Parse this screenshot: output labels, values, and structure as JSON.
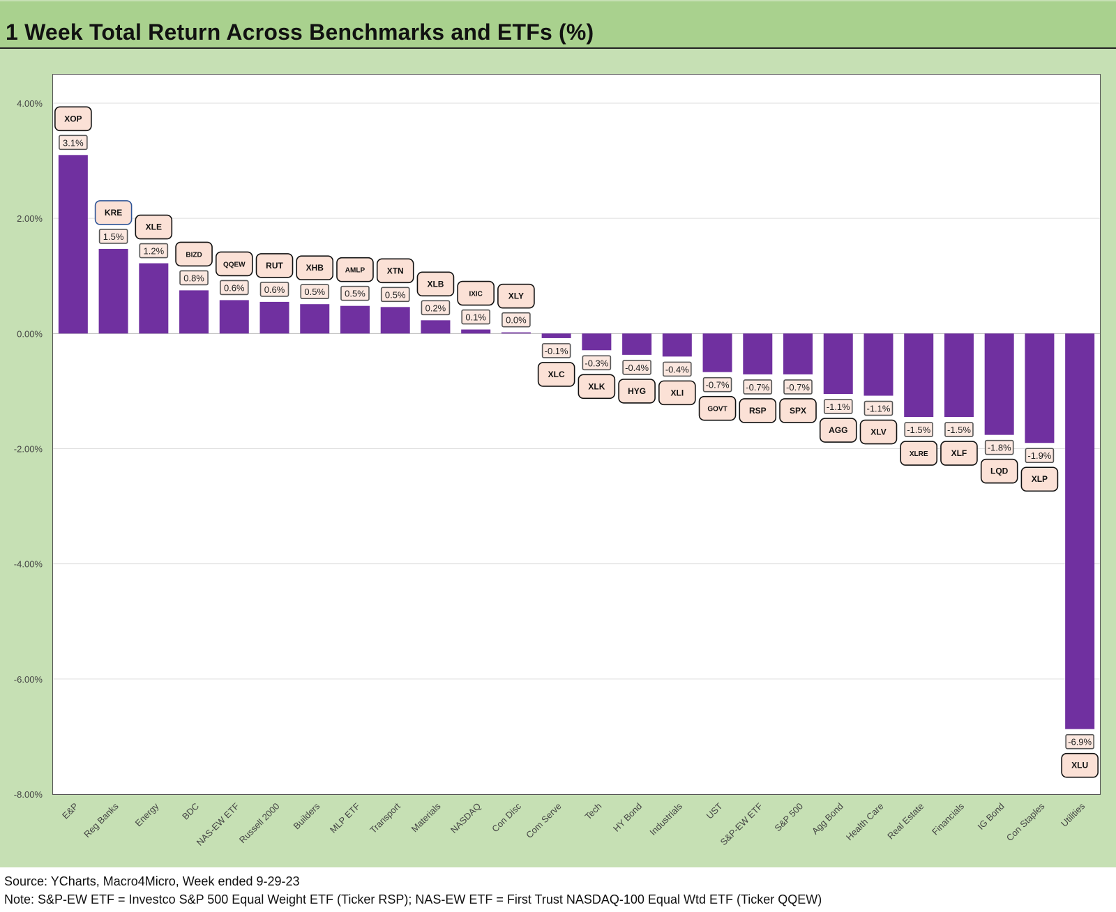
{
  "title": "1 Week Total Return Across Benchmarks and ETFs (%)",
  "footer": {
    "source": "Source: YCharts, Macro4Micro, Week ended 9-29-23",
    "note": "Note: S&P-EW ETF = Investco S&P 500 Equal Weight ETF (Ticker RSP); NAS-EW ETF = First Trust NASDAQ-100 Equal Wtd ETF (Ticker QQEW)"
  },
  "colors": {
    "bar": "#7030a0",
    "ticker_box_fill": "#fbe1d6",
    "frame_green": "#c6e0b4",
    "title_green": "#a9d18e",
    "highlight_border": "#2e5597"
  },
  "chart_data": {
    "type": "bar",
    "title": "1 Week Total Return Across Benchmarks and ETFs (%)",
    "xlabel": "",
    "ylabel": "",
    "ylim": [
      -8,
      4
    ],
    "yticks": [
      4,
      2,
      0,
      -2,
      -4,
      -6,
      -8
    ],
    "ytick_labels": [
      "4.00%",
      "2.00%",
      "0.00%",
      "-2.00%",
      "-4.00%",
      "-6.00%",
      "-8.00%"
    ],
    "grid": true,
    "legend": "none",
    "categories": [
      "E&P",
      "Reg Banks",
      "Energy",
      "BDC",
      "NAS-EW ETF",
      "Russell 2000",
      "Builders",
      "MLP ETF",
      "Transport",
      "Materials",
      "NASDAQ",
      "Con Disc",
      "Com Serve",
      "Tech",
      "HY Bond",
      "Industrials",
      "UST",
      "S&P-EW ETF",
      "S&P 500",
      "Agg Bond",
      "Health Care",
      "Real Estate",
      "Financials",
      "IG Bond",
      "Con Staples",
      "Utilities"
    ],
    "values": [
      3.1,
      1.47,
      1.22,
      0.75,
      0.58,
      0.55,
      0.51,
      0.48,
      0.46,
      0.23,
      0.07,
      0.02,
      -0.08,
      -0.29,
      -0.37,
      -0.4,
      -0.67,
      -0.71,
      -0.71,
      -1.05,
      -1.08,
      -1.45,
      -1.45,
      -1.76,
      -1.9,
      -6.87
    ],
    "data_labels": [
      "3.1%",
      "1.5%",
      "1.2%",
      "0.8%",
      "0.6%",
      "0.6%",
      "0.5%",
      "0.5%",
      "0.5%",
      "0.2%",
      "0.1%",
      "0.0%",
      "-0.1%",
      "-0.3%",
      "-0.4%",
      "-0.4%",
      "-0.7%",
      "-0.7%",
      "-0.7%",
      "-1.1%",
      "-1.1%",
      "-1.5%",
      "-1.5%",
      "-1.8%",
      "-1.9%",
      "-6.9%"
    ],
    "tickers": [
      "XOP",
      "KRE",
      "XLE",
      "BIZD",
      "QQEW",
      "RUT",
      "XHB",
      "AMLP",
      "XTN",
      "XLB",
      "IXIC",
      "XLY",
      "XLC",
      "XLK",
      "HYG",
      "XLI",
      "GOVT",
      "RSP",
      "SPX",
      "AGG",
      "XLV",
      "XLRE",
      "XLF",
      "LQD",
      "XLP",
      "XLU"
    ]
  }
}
